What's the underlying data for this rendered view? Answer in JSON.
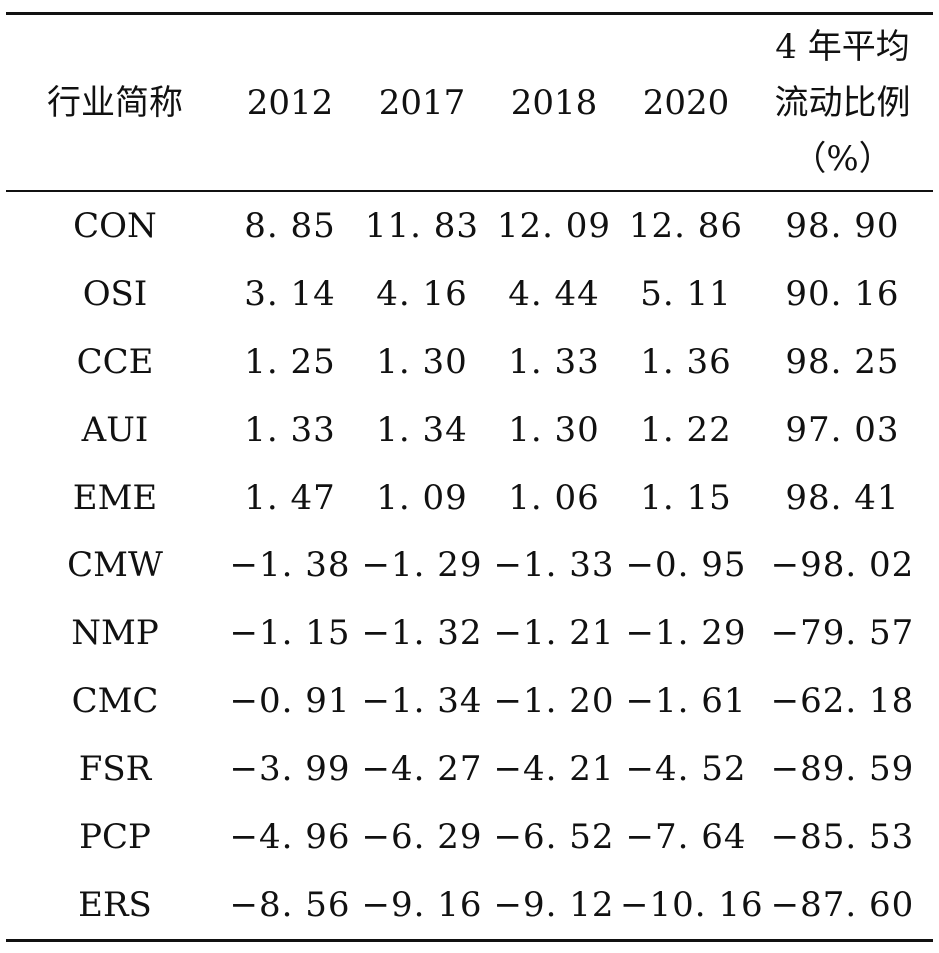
{
  "table": {
    "headers": [
      {
        "lines": [
          "行业简称"
        ]
      },
      {
        "lines": [
          "2012"
        ]
      },
      {
        "lines": [
          "2017"
        ]
      },
      {
        "lines": [
          "2018"
        ]
      },
      {
        "lines": [
          "2020"
        ]
      },
      {
        "lines": [
          "4 年平均",
          "流动比例",
          "（%）"
        ]
      }
    ],
    "rows": [
      [
        "CON",
        "8. 85",
        "11. 83",
        "12. 09",
        "12. 86",
        "98. 90"
      ],
      [
        "OSI",
        "3. 14",
        "4. 16",
        "4. 44",
        "5. 11",
        "90. 16"
      ],
      [
        "CCE",
        "1. 25",
        "1. 30",
        "1. 33",
        "1. 36",
        "98. 25"
      ],
      [
        "AUI",
        "1. 33",
        "1. 34",
        "1. 30",
        "1. 22",
        "97. 03"
      ],
      [
        "EME",
        "1. 47",
        "1. 09",
        "1. 06",
        "1. 15",
        "98. 41"
      ],
      [
        "CMW",
        "−1. 38",
        "−1. 29",
        "−1. 33",
        "−0. 95",
        "−98. 02"
      ],
      [
        "NMP",
        "−1. 15",
        "−1. 32",
        "−1. 21",
        "−1. 29",
        "−79. 57"
      ],
      [
        "CMC",
        "−0. 91",
        "−1. 34",
        "−1. 20",
        "−1. 61",
        "−62. 18"
      ],
      [
        "FSR",
        "−3. 99",
        "−4. 27",
        "−4. 21",
        "−4. 52",
        "−89. 59"
      ],
      [
        "PCP",
        "−4. 96",
        "−6. 29",
        "−6. 52",
        "−7. 64",
        "−85. 53"
      ],
      [
        "ERS",
        "−8. 56",
        "−9. 16",
        "−9. 12",
        "−10. 16",
        "−87. 60"
      ]
    ]
  }
}
